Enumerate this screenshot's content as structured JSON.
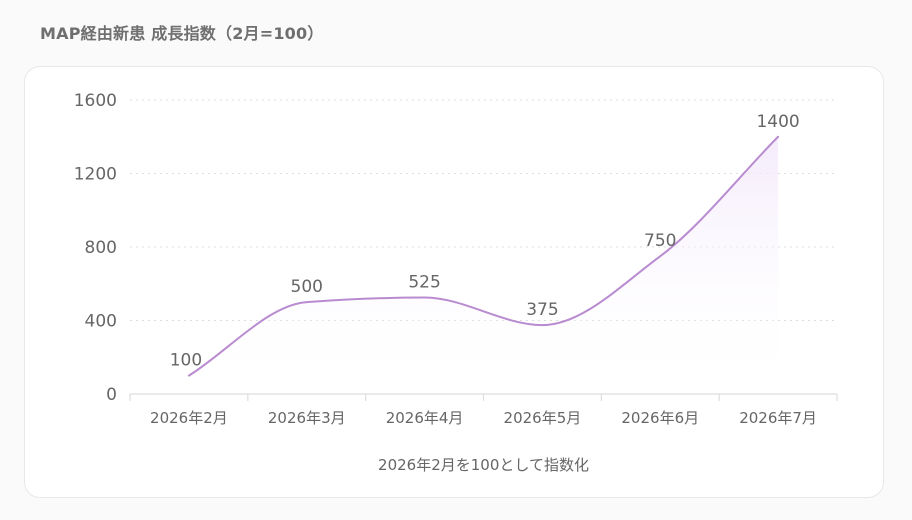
{
  "page": {
    "title": "MAP経由新患 成長指数（2月=100）"
  },
  "colors": {
    "line": "#b98bd0",
    "area_top": "#f3e9fb",
    "grid": "#dddddd",
    "axis": "#dddddd",
    "text": "#666666"
  },
  "chart_data": {
    "type": "line",
    "title": "MAP経由新患 成長指数（2月=100）",
    "categories": [
      "2026年2月",
      "2026年3月",
      "2026年4月",
      "2026年5月",
      "2026年6月",
      "2026年7月"
    ],
    "series": [
      {
        "values": [
          100,
          500,
          525,
          375,
          750,
          1400
        ]
      }
    ],
    "data_labels": [
      "100",
      "500",
      "525",
      "375",
      "750",
      "1400"
    ],
    "y_ticks": [
      0,
      400,
      800,
      1200,
      1600
    ],
    "y_tick_labels": [
      "0",
      "400",
      "800",
      "1200",
      "1600"
    ],
    "ylim": [
      0,
      1600
    ],
    "xlabel": "2026年2月を100として指数化",
    "ylabel": "",
    "grid": true,
    "curve": "smooth",
    "area_fill": true,
    "legend": "none"
  }
}
